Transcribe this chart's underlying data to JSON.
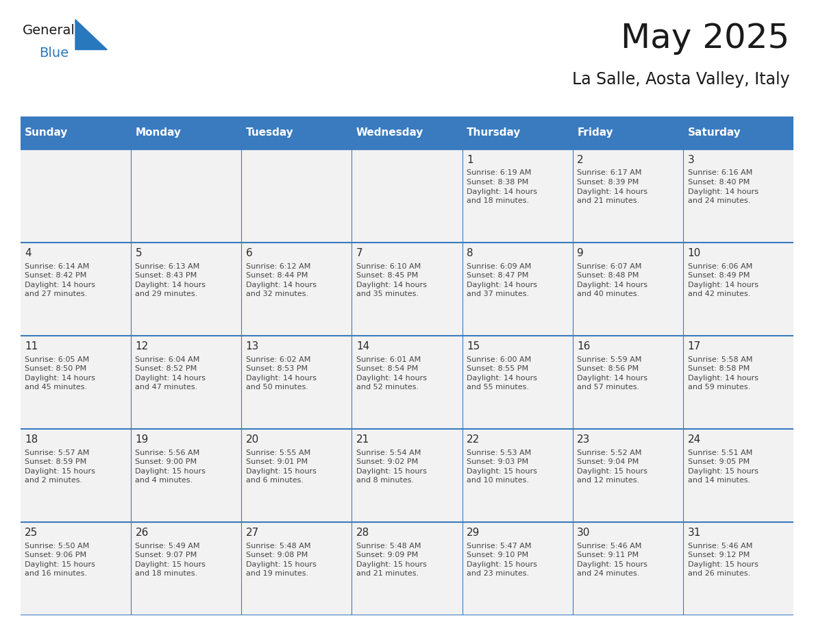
{
  "title": "May 2025",
  "subtitle": "La Salle, Aosta Valley, Italy",
  "days_of_week": [
    "Sunday",
    "Monday",
    "Tuesday",
    "Wednesday",
    "Thursday",
    "Friday",
    "Saturday"
  ],
  "header_bg_color": "#3a7bbf",
  "header_text_color": "#ffffff",
  "cell_bg_color": "#f2f2f2",
  "day_num_color": "#2a2a2a",
  "text_color": "#444444",
  "line_color": "#3a7bbf",
  "calendar_data": [
    [
      "",
      "",
      "",
      "",
      "1",
      "2",
      "3"
    ],
    [
      "4",
      "5",
      "6",
      "7",
      "8",
      "9",
      "10"
    ],
    [
      "11",
      "12",
      "13",
      "14",
      "15",
      "16",
      "17"
    ],
    [
      "18",
      "19",
      "20",
      "21",
      "22",
      "23",
      "24"
    ],
    [
      "25",
      "26",
      "27",
      "28",
      "29",
      "30",
      "31"
    ]
  ],
  "cell_info": [
    [
      "",
      "",
      "",
      "",
      "Sunrise: 6:19 AM\nSunset: 8:38 PM\nDaylight: 14 hours\nand 18 minutes.",
      "Sunrise: 6:17 AM\nSunset: 8:39 PM\nDaylight: 14 hours\nand 21 minutes.",
      "Sunrise: 6:16 AM\nSunset: 8:40 PM\nDaylight: 14 hours\nand 24 minutes."
    ],
    [
      "Sunrise: 6:14 AM\nSunset: 8:42 PM\nDaylight: 14 hours\nand 27 minutes.",
      "Sunrise: 6:13 AM\nSunset: 8:43 PM\nDaylight: 14 hours\nand 29 minutes.",
      "Sunrise: 6:12 AM\nSunset: 8:44 PM\nDaylight: 14 hours\nand 32 minutes.",
      "Sunrise: 6:10 AM\nSunset: 8:45 PM\nDaylight: 14 hours\nand 35 minutes.",
      "Sunrise: 6:09 AM\nSunset: 8:47 PM\nDaylight: 14 hours\nand 37 minutes.",
      "Sunrise: 6:07 AM\nSunset: 8:48 PM\nDaylight: 14 hours\nand 40 minutes.",
      "Sunrise: 6:06 AM\nSunset: 8:49 PM\nDaylight: 14 hours\nand 42 minutes."
    ],
    [
      "Sunrise: 6:05 AM\nSunset: 8:50 PM\nDaylight: 14 hours\nand 45 minutes.",
      "Sunrise: 6:04 AM\nSunset: 8:52 PM\nDaylight: 14 hours\nand 47 minutes.",
      "Sunrise: 6:02 AM\nSunset: 8:53 PM\nDaylight: 14 hours\nand 50 minutes.",
      "Sunrise: 6:01 AM\nSunset: 8:54 PM\nDaylight: 14 hours\nand 52 minutes.",
      "Sunrise: 6:00 AM\nSunset: 8:55 PM\nDaylight: 14 hours\nand 55 minutes.",
      "Sunrise: 5:59 AM\nSunset: 8:56 PM\nDaylight: 14 hours\nand 57 minutes.",
      "Sunrise: 5:58 AM\nSunset: 8:58 PM\nDaylight: 14 hours\nand 59 minutes."
    ],
    [
      "Sunrise: 5:57 AM\nSunset: 8:59 PM\nDaylight: 15 hours\nand 2 minutes.",
      "Sunrise: 5:56 AM\nSunset: 9:00 PM\nDaylight: 15 hours\nand 4 minutes.",
      "Sunrise: 5:55 AM\nSunset: 9:01 PM\nDaylight: 15 hours\nand 6 minutes.",
      "Sunrise: 5:54 AM\nSunset: 9:02 PM\nDaylight: 15 hours\nand 8 minutes.",
      "Sunrise: 5:53 AM\nSunset: 9:03 PM\nDaylight: 15 hours\nand 10 minutes.",
      "Sunrise: 5:52 AM\nSunset: 9:04 PM\nDaylight: 15 hours\nand 12 minutes.",
      "Sunrise: 5:51 AM\nSunset: 9:05 PM\nDaylight: 15 hours\nand 14 minutes."
    ],
    [
      "Sunrise: 5:50 AM\nSunset: 9:06 PM\nDaylight: 15 hours\nand 16 minutes.",
      "Sunrise: 5:49 AM\nSunset: 9:07 PM\nDaylight: 15 hours\nand 18 minutes.",
      "Sunrise: 5:48 AM\nSunset: 9:08 PM\nDaylight: 15 hours\nand 19 minutes.",
      "Sunrise: 5:48 AM\nSunset: 9:09 PM\nDaylight: 15 hours\nand 21 minutes.",
      "Sunrise: 5:47 AM\nSunset: 9:10 PM\nDaylight: 15 hours\nand 23 minutes.",
      "Sunrise: 5:46 AM\nSunset: 9:11 PM\nDaylight: 15 hours\nand 24 minutes.",
      "Sunrise: 5:46 AM\nSunset: 9:12 PM\nDaylight: 15 hours\nand 26 minutes."
    ]
  ],
  "logo_color_general": "#1a1a1a",
  "logo_color_blue": "#2878be",
  "logo_triangle_color": "#2878be",
  "title_fontsize": 36,
  "subtitle_fontsize": 17,
  "header_fontsize": 11,
  "day_num_fontsize": 11,
  "cell_text_fontsize": 8
}
